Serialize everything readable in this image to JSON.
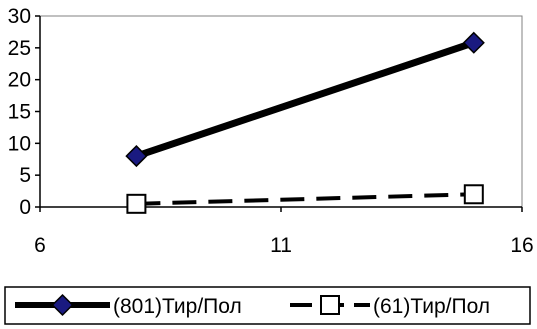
{
  "chart_data": {
    "type": "line",
    "title": "",
    "xlabel": "",
    "ylabel": "",
    "xlim": [
      6,
      16
    ],
    "ylim": [
      0,
      30
    ],
    "x_ticks": [
      "6",
      "11",
      "16"
    ],
    "y_ticks": [
      "0",
      "5",
      "10",
      "15",
      "20",
      "25",
      "30"
    ],
    "grid": false,
    "legend_position": "bottom",
    "series": [
      {
        "name": "(801)Тир/Пол",
        "x": [
          8,
          15
        ],
        "y": [
          8,
          25.8
        ],
        "color": "#000000",
        "marker": "diamond",
        "marker_color": "#1a1a80",
        "line_style": "solid"
      },
      {
        "name": "(61)Тир/Пол",
        "x": [
          8,
          15
        ],
        "y": [
          0.5,
          2
        ],
        "color": "#000000",
        "marker": "square",
        "marker_color": "#ffffff",
        "line_style": "dashed"
      }
    ]
  }
}
